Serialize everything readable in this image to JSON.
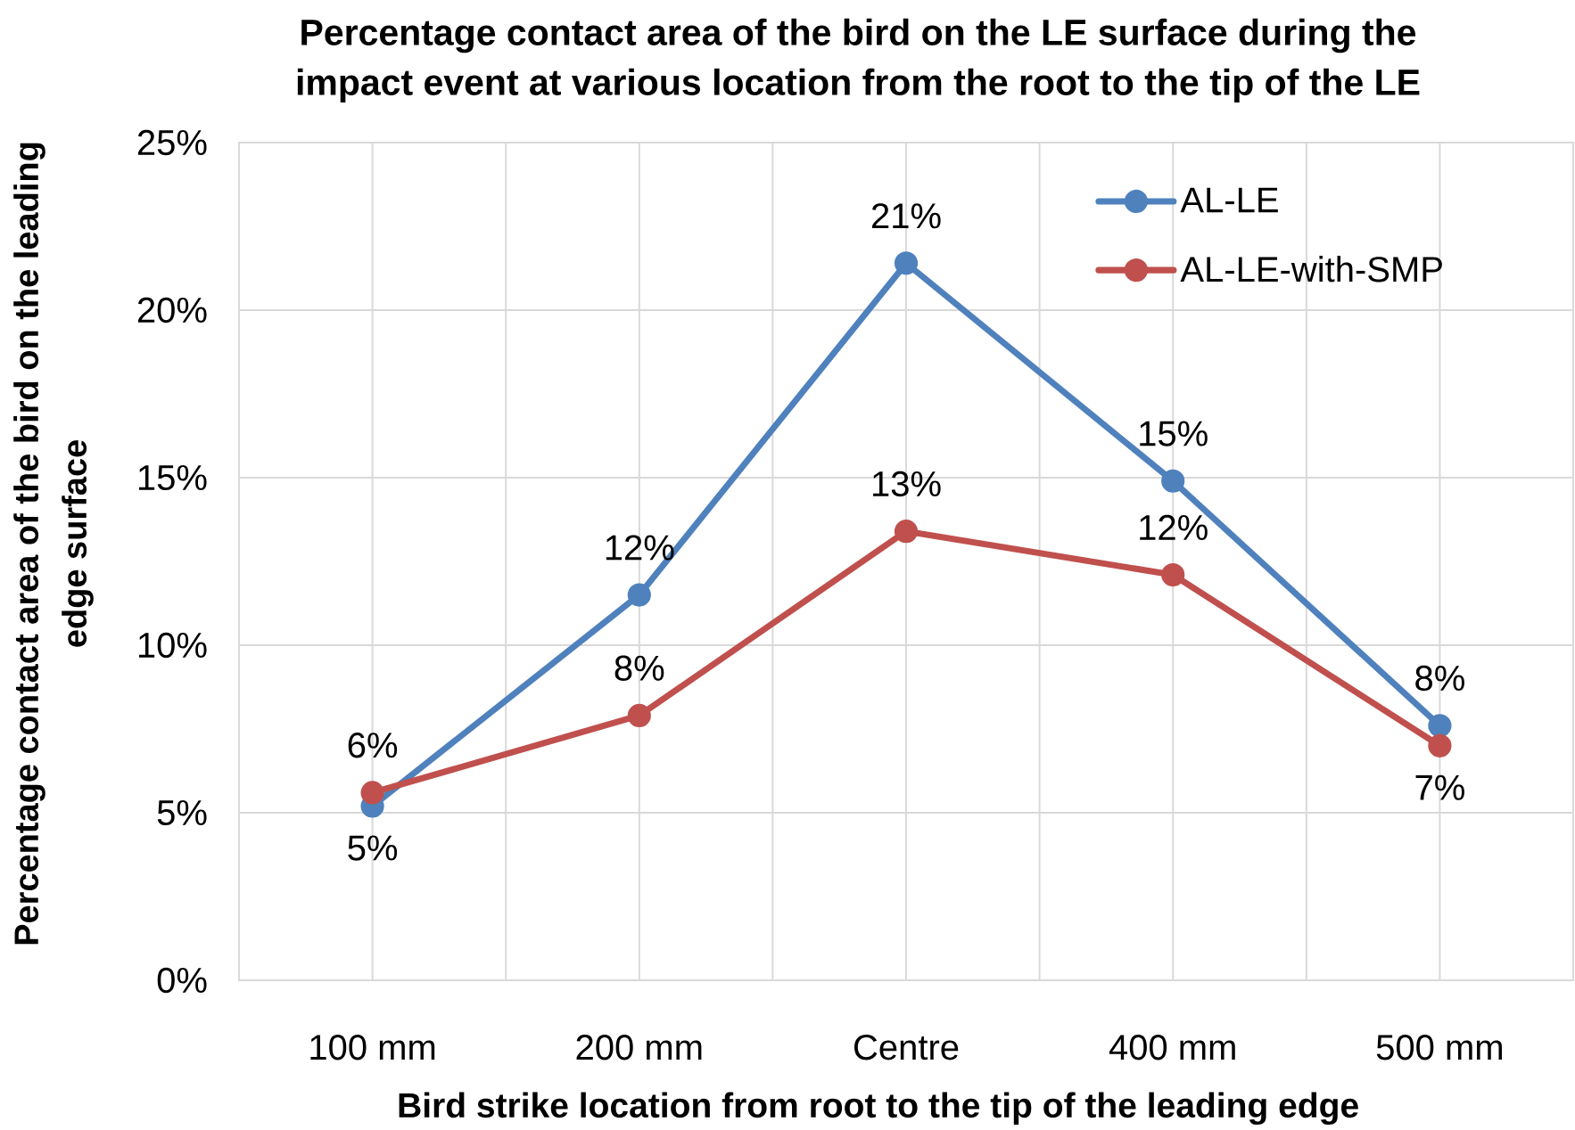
{
  "chart_data": {
    "type": "line",
    "title": "Percentage contact area of the bird on the LE surface during the impact event at various location from the root to the tip of the LE",
    "xlabel": "Bird strike location from root to the tip of the leading edge",
    "ylabel": "Percentage contact area of the bird on the leading edge surface",
    "categories": [
      "100 mm",
      "200 mm",
      "Centre",
      "400 mm",
      "500 mm"
    ],
    "series": [
      {
        "name": "AL-LE",
        "color": "#4f81bd",
        "values": [
          5.2,
          11.5,
          21.4,
          14.9,
          7.6
        ],
        "value_labels": [
          "5%",
          "12%",
          "21%",
          "15%",
          "8%"
        ]
      },
      {
        "name": "AL-LE-with-SMP",
        "color": "#c0504d",
        "values": [
          5.6,
          7.9,
          13.4,
          12.1,
          7.0
        ],
        "value_labels": [
          "6%",
          "8%",
          "13%",
          "12%",
          "7%"
        ]
      }
    ],
    "ylim": [
      0,
      25
    ],
    "yticks": [
      {
        "value": 0,
        "label": "0%"
      },
      {
        "value": 5,
        "label": "5%"
      },
      {
        "value": 10,
        "label": "10%"
      },
      {
        "value": 15,
        "label": "15%"
      },
      {
        "value": 20,
        "label": "20%"
      },
      {
        "value": 25,
        "label": "25%"
      }
    ],
    "grid": true,
    "legend": "top right",
    "marker": "circle",
    "line_style": "solid"
  }
}
